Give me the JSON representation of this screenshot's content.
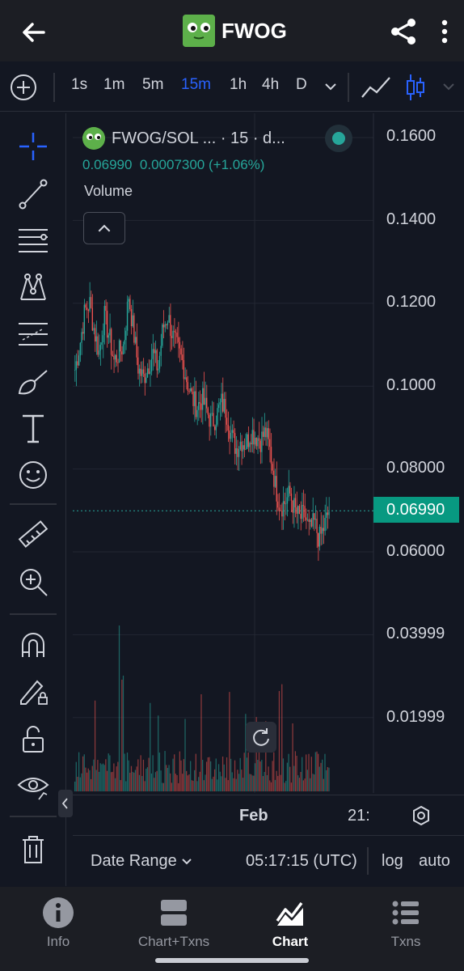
{
  "header": {
    "title": "FWOG"
  },
  "timeframes": {
    "items": [
      "1s",
      "1m",
      "5m",
      "15m",
      "1h",
      "4h",
      "D"
    ],
    "active": "15m"
  },
  "legend": {
    "pair": "FWOG/SOL ... · 15 · d...",
    "price": "0.06990",
    "change": "0.0007300 (+1.06%)",
    "volume_label": "Volume"
  },
  "price_axis": [
    "0.1600",
    "0.1400",
    "0.1200",
    "0.1000",
    "0.08000",
    "0.06000",
    "0.03999",
    "0.01999"
  ],
  "current_price": "0.06990",
  "time_axis": {
    "label1": "Feb",
    "label2": "21:"
  },
  "range_bar": {
    "date_range": "Date Range",
    "time": "05:17:15 (UTC)",
    "log": "log",
    "auto": "auto"
  },
  "nav": {
    "items": [
      {
        "label": "Info",
        "icon": "info-icon"
      },
      {
        "label": "Chart+Txns",
        "icon": "chart-txns-icon"
      },
      {
        "label": "Chart",
        "icon": "chart-icon"
      },
      {
        "label": "Txns",
        "icon": "list-icon"
      }
    ],
    "active": "Chart"
  },
  "colors": {
    "up": "#26a69a",
    "down": "#ef5350",
    "accent": "#2962ff",
    "price_tag": "#089981"
  },
  "chart_data": {
    "type": "candlestick",
    "symbol": "FWOG/SOL",
    "interval": "15",
    "last_price": 0.0699,
    "y_ticks": [
      0.16,
      0.14,
      0.12,
      0.1,
      0.08,
      0.06
    ],
    "close_path": [
      0.104,
      0.11,
      0.118,
      0.12,
      0.113,
      0.108,
      0.117,
      0.112,
      0.106,
      0.108,
      0.11,
      0.122,
      0.113,
      0.104,
      0.102,
      0.105,
      0.108,
      0.104,
      0.114,
      0.117,
      0.112,
      0.109,
      0.106,
      0.101,
      0.097,
      0.095,
      0.097,
      0.094,
      0.091,
      0.093,
      0.096,
      0.094,
      0.088,
      0.085,
      0.087,
      0.086,
      0.089,
      0.088,
      0.087,
      0.089,
      0.084,
      0.076,
      0.071,
      0.072,
      0.074,
      0.07,
      0.068,
      0.069,
      0.065,
      0.067,
      0.063,
      0.066,
      0.07
    ]
  }
}
